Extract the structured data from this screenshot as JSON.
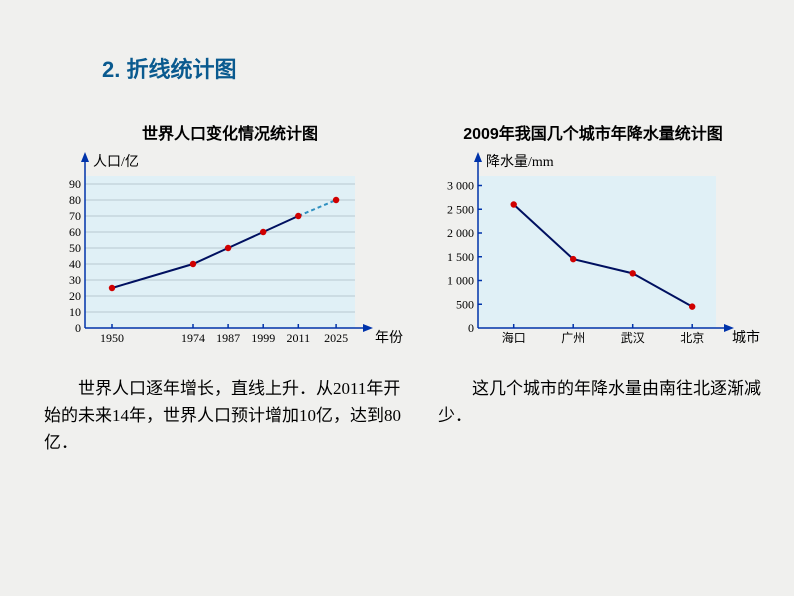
{
  "section_title": "2.  折线统计图",
  "chart1": {
    "type": "line",
    "title": "世界人口变化情况统计图",
    "ylabel": "人口/亿",
    "xlabel": "年份",
    "x_ticks": [
      "1950",
      "1974",
      "1987",
      "1999",
      "2011",
      "2025"
    ],
    "x_positions": [
      0.1,
      0.4,
      0.53,
      0.66,
      0.79,
      0.93
    ],
    "y_ticks": [
      0,
      10,
      20,
      30,
      40,
      50,
      60,
      70,
      80,
      90
    ],
    "ylim": [
      0,
      95
    ],
    "solid_values": [
      25,
      40,
      50,
      60,
      70
    ],
    "dashed_from_index": 4,
    "dashed_values": [
      70,
      80
    ],
    "background_color": "#e0f0f6",
    "axis_color": "#0033aa",
    "grid_color": "#b8c8d0",
    "line_color": "#001060",
    "dashed_line_color": "#3090c0",
    "point_color": "#d00000",
    "caption": "世界人口逐年增长，直线上升．从2011年开始的未来14年，世界人口预计增加10亿，达到80亿．"
  },
  "chart2": {
    "type": "line",
    "title": "2009年我国几个城市年降水量统计图",
    "ylabel": "降水量/mm",
    "xlabel": "城市",
    "x_ticks": [
      "海口",
      "广州",
      "武汉",
      "北京"
    ],
    "x_positions": [
      0.15,
      0.4,
      0.65,
      0.9
    ],
    "y_ticks": [
      0,
      500,
      1000,
      1500,
      2000,
      2500,
      3000
    ],
    "y_tick_labels": [
      "0",
      "500",
      "1 000",
      "1 500",
      "2 000",
      "2 500",
      "3 000"
    ],
    "ylim": [
      0,
      3200
    ],
    "values": [
      2600,
      1450,
      1150,
      450
    ],
    "background_color": "#e0f0f6",
    "axis_color": "#0033aa",
    "grid_color": "#b8c8d0",
    "line_color": "#001060",
    "point_color": "#d00000",
    "caption": "这几个城市的年降水量由南往北逐渐减少．"
  }
}
